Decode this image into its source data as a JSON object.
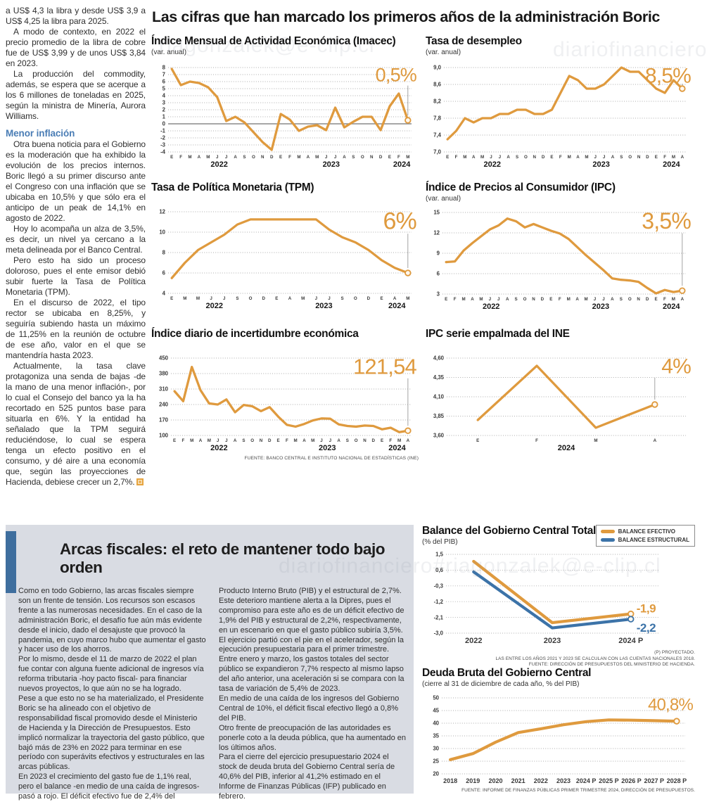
{
  "main_title": "Las cifras que han marcado los primeros años de la administración Boric",
  "watermarks": [
    {
      "text": "riagonzalek@e-clip.cl"
    },
    {
      "text": "diariofinanciero"
    },
    {
      "text": "diariofinanciero#riagonzalek@e-clip.cl"
    }
  ],
  "left_article": {
    "paragraphs": [
      "a US$ 4,3 la libra y desde US$ 3,9 a US$ 4,25 la libra para 2025.",
      "A modo de contexto, en 2022 el precio promedio de la libra de cobre fue de US$ 3,99 y de unos US$ 3,84 en 2023.",
      "La producción del commodity, además, se espera que se acerque a los 6 millones de toneladas en 2025, según la ministra de Minería, Aurora Williams."
    ],
    "subhead": "Menor inflación",
    "paragraphs2": [
      "Otra buena noticia para el Gobierno es la moderación que ha exhibido la evolución de los precios internos. Boric llegó a su primer discurso ante el Congreso con una inflación que se ubicaba en 10,5% y que sólo era el anticipo de un peak de 14,1% en agosto de 2022.",
      "Hoy lo acompaña un alza de 3,5%, es decir, un nivel ya cercano a la meta delineada por el Banco Central.",
      "Pero esto ha sido un proceso doloroso, pues el ente emisor debió subir fuerte la Tasa de Política Monetaria (TPM).",
      "En el discurso de 2022, el tipo rector se ubicaba en 8,25%, y seguiría subiendo hasta un máximo de 11,25% en la reunión de octubre de ese año, valor en el que se mantendría hasta 2023.",
      "Actualmente, la tasa clave protagoniza una senda de bajas -de la mano de una menor inflación-, por lo cual el Consejo del banco ya la ha recortado en 525 puntos base para situarla en 6%. Y la entidad ha señalado que la TPM seguirá reduciéndose, lo cual se espera tenga un efecto positivo en el consumo, y dé aire a una economía que, según las proyecciones de Hacienda, debiese crecer un 2,7%."
    ]
  },
  "fiscal_section": {
    "headline": "Arcas fiscales: el reto de mantener todo bajo orden",
    "col1": [
      "Como en todo Gobierno, las arcas fiscales siempre son un frente de tensión. Los recursos son escasos frente a las numerosas necesidades. En el caso de la administración Boric, el desafío fue aún más evidente desde el inicio, dado el desajuste que provocó la pandemia, en cuyo marco hubo que aumentar el gasto y hacer uso de los ahorros.",
      "Por lo mismo, desde el 11 de marzo de 2022 el plan fue contar con alguna fuente adicional de ingresos vía reforma tributaria -hoy pacto fiscal- para financiar nuevos proyectos, lo que aún no se ha logrado.",
      "Pese a que esto no se ha materializado, el Presidente Boric se ha alineado con el objetivo de responsabilidad fiscal promovido desde el Ministerio de Hacienda y la Dirección de Presupuestos. Esto implicó normalizar la trayectoria del gasto público, que bajó más de 23% en 2022 para terminar en ese período con superávits efectivos y estructurales en las arcas públicas.",
      "En 2023 el crecimiento del gasto fue de 1,1% real, pero el balance -en medio de una caída de ingresos- pasó a rojo. El déficit efectivo fue de 2,4% del"
    ],
    "col2": [
      "Producto Interno Bruto (PIB) y el estructural de 2,7%. Este deterioro mantiene alerta a la Dipres, pues el compromiso para este año es de un déficit efectivo de 1,9% del PIB y estructural de 2,2%, respectivamente, en un escenario en que el gasto público subiría 3,5%.",
      "El ejercicio partió con el pie en el acelerador, según la ejecución presupuestaria para el primer trimestre. Entre enero y marzo, los gastos totales del sector público se expandieron 7,7% respecto al mismo lapso del año anterior, una aceleración si se compara con la tasa de variación de 5,4% de 2023.",
      "En medio de una caída de los ingresos del Gobierno Central de 10%, el déficit fiscal efectivo llegó a 0,8% del PIB.",
      "Otro frente de preocupación de las autoridades es ponerle coto a la deuda pública, que ha aumentado en los últimos años.",
      "Para el cierre del ejercicio presupuestario 2024 el stock de deuda bruta del Gobierno Central sería de 40,6% del PIB, inferior al 41,2% estimado en el Informe de Finanzas Públicas (IFP) publicado en febrero."
    ]
  },
  "chart_data": [
    {
      "type": "line",
      "title": "Índice Mensual de Actividad Económica (Imacec)",
      "subtitle": "(var. anual)",
      "ymin": -4,
      "ymax": 8,
      "grid": true,
      "zero_line": true,
      "y_ticks": [
        [
          8,
          "8"
        ],
        [
          7,
          "7"
        ],
        [
          6,
          "6"
        ],
        [
          5,
          "5"
        ],
        [
          4,
          "4"
        ],
        [
          3,
          "3"
        ],
        [
          2,
          "2"
        ],
        [
          1,
          "1"
        ],
        [
          0,
          "0"
        ],
        [
          -1,
          "-1"
        ],
        [
          -2,
          "-2"
        ],
        [
          -3,
          "-3"
        ],
        [
          -4,
          "-4"
        ]
      ],
      "x_labels": [
        "E",
        "F",
        "M",
        "A",
        "M",
        "J",
        "J",
        "A",
        "S",
        "O",
        "N",
        "D",
        "E",
        "F",
        "M",
        "A",
        "M",
        "J",
        "J",
        "A",
        "S",
        "O",
        "N",
        "D",
        "E",
        "F",
        "M"
      ],
      "year_labels": [
        [
          "2022",
          0.21
        ],
        [
          "2023",
          0.67
        ],
        [
          "2024",
          0.96
        ]
      ],
      "m": {
        "l": 24,
        "r": 10,
        "t": 14,
        "b": 28
      },
      "series": [
        {
          "name": "Imacec",
          "color": "#DF9A3E",
          "values": [
            7.8,
            5.5,
            6.0,
            5.8,
            5.2,
            3.8,
            0.4,
            1.0,
            0.2,
            -1.2,
            -2.6,
            -3.7,
            1.4,
            0.6,
            -1.0,
            -0.4,
            -0.2,
            -0.9,
            2.3,
            -0.5,
            0.3,
            1.0,
            1.0,
            -0.9,
            2.5,
            4.3,
            0.5
          ]
        }
      ],
      "callout": {
        "text": "0,5%",
        "size": 27,
        "line": true
      }
    },
    {
      "type": "line",
      "title": "Tasa de desempleo",
      "subtitle": "(var. anual)",
      "ymin": 7.0,
      "ymax": 9.0,
      "grid": true,
      "y_ticks": [
        [
          9.0,
          "9,0"
        ],
        [
          8.6,
          "8,6"
        ],
        [
          8.2,
          "8,2"
        ],
        [
          7.8,
          "7,8"
        ],
        [
          7.4,
          "7,4"
        ],
        [
          7.0,
          "7,0"
        ]
      ],
      "x_labels": [
        "E",
        "F",
        "M",
        "A",
        "M",
        "J",
        "J",
        "A",
        "S",
        "O",
        "N",
        "D",
        "E",
        "F",
        "M",
        "A",
        "M",
        "J",
        "J",
        "A",
        "S",
        "O",
        "N",
        "D",
        "E",
        "F",
        "M",
        "A"
      ],
      "year_labels": [
        [
          "2022",
          0.2
        ],
        [
          "2023",
          0.65
        ],
        [
          "2024",
          0.94
        ]
      ],
      "m": {
        "l": 26,
        "r": 10,
        "t": 14,
        "b": 28
      },
      "series": [
        {
          "name": "Tasa de desempleo",
          "color": "#DF9A3E",
          "values": [
            7.3,
            7.5,
            7.8,
            7.7,
            7.8,
            7.8,
            7.9,
            7.9,
            8.0,
            8.0,
            7.9,
            7.9,
            8.0,
            8.4,
            8.8,
            8.7,
            8.5,
            8.5,
            8.6,
            8.8,
            9.0,
            8.9,
            8.9,
            8.7,
            8.5,
            8.4,
            8.7,
            8.5
          ]
        }
      ],
      "callout": {
        "text": "8,5%",
        "size": 30,
        "line": true
      }
    },
    {
      "type": "line",
      "title": "Tasa de Política Monetaria (TPM)",
      "subtitle": "",
      "ymin": 4,
      "ymax": 12,
      "grid": true,
      "y_ticks": [
        [
          12,
          "12"
        ],
        [
          10,
          "10"
        ],
        [
          8,
          "8"
        ],
        [
          6,
          "6"
        ],
        [
          4,
          "4"
        ]
      ],
      "x_labels": [
        "E",
        "M",
        "M",
        "J",
        "J",
        "S",
        "O",
        "D",
        "E",
        "A",
        "M",
        "J",
        "J",
        "S",
        "O",
        "D",
        "E",
        "A",
        "M"
      ],
      "year_labels": [
        [
          "2022",
          0.19
        ],
        [
          "2023",
          0.64
        ],
        [
          "2024",
          0.94
        ]
      ],
      "m": {
        "l": 24,
        "r": 10,
        "t": 24,
        "b": 30
      },
      "series": [
        {
          "name": "TPM",
          "color": "#DF9A3E",
          "values": [
            5.5,
            7.0,
            8.25,
            9.0,
            9.75,
            10.75,
            11.25,
            11.25,
            11.25,
            11.25,
            11.25,
            11.25,
            10.25,
            9.5,
            9.0,
            8.25,
            7.25,
            6.5,
            6.0
          ]
        }
      ],
      "callout": {
        "text": "6%",
        "size": 34,
        "line": true
      }
    },
    {
      "type": "line",
      "title": "Índice de Precios al Consumidor (IPC)",
      "subtitle": "(var. anual)",
      "ymin": 3,
      "ymax": 15,
      "grid": true,
      "y_ticks": [
        [
          15,
          "15"
        ],
        [
          12,
          "12"
        ],
        [
          9,
          "9"
        ],
        [
          6,
          "6"
        ],
        [
          3,
          "3"
        ]
      ],
      "x_labels": [
        "E",
        "F",
        "M",
        "A",
        "M",
        "J",
        "J",
        "A",
        "S",
        "O",
        "N",
        "D",
        "E",
        "F",
        "M",
        "A",
        "M",
        "J",
        "J",
        "A",
        "S",
        "O",
        "N",
        "D",
        "E",
        "F",
        "M",
        "A"
      ],
      "year_labels": [
        [
          "2022",
          0.2
        ],
        [
          "2023",
          0.65
        ],
        [
          "2024",
          0.94
        ]
      ],
      "m": {
        "l": 24,
        "r": 10,
        "t": 12,
        "b": 30
      },
      "series": [
        {
          "name": "IPC",
          "color": "#DF9A3E",
          "values": [
            7.7,
            7.8,
            9.4,
            10.5,
            11.5,
            12.5,
            13.1,
            14.1,
            13.7,
            12.8,
            13.3,
            12.8,
            12.3,
            11.9,
            11.1,
            9.9,
            8.7,
            7.6,
            6.5,
            5.3,
            5.1,
            5.0,
            4.8,
            3.9,
            3.1,
            3.6,
            3.3,
            3.5
          ]
        }
      ],
      "callout": {
        "text": "3,5%",
        "size": 32,
        "line": true
      }
    },
    {
      "type": "line",
      "title": "Índice diario de incertidumbre económica",
      "subtitle": "",
      "ymin": 100,
      "ymax": 450,
      "grid": true,
      "y_ticks": [
        [
          450,
          "450"
        ],
        [
          380,
          "380"
        ],
        [
          310,
          "310"
        ],
        [
          240,
          "240"
        ],
        [
          170,
          "170"
        ],
        [
          100,
          "100"
        ]
      ],
      "x_labels": [
        "E",
        "F",
        "M",
        "A",
        "M",
        "J",
        "J",
        "A",
        "S",
        "O",
        "N",
        "D",
        "E",
        "F",
        "M",
        "A",
        "M",
        "J",
        "J",
        "A",
        "S",
        "O",
        "N",
        "D",
        "E",
        "F",
        "M",
        "A"
      ],
      "year_labels": [
        [
          "2022",
          0.2
        ],
        [
          "2023",
          0.65
        ],
        [
          "2024",
          0.94
        ]
      ],
      "m": {
        "l": 28,
        "r": 10,
        "t": 24,
        "b": 30
      },
      "series": [
        {
          "name": "Incertidumbre económica",
          "color": "#DF9A3E",
          "values": [
            300,
            255,
            410,
            305,
            245,
            240,
            263,
            205,
            238,
            232,
            210,
            228,
            185,
            148,
            140,
            152,
            168,
            177,
            176,
            150,
            143,
            140,
            145,
            143,
            128,
            135,
            115,
            121.54
          ]
        }
      ],
      "callout": {
        "text": "121,54",
        "size": 31,
        "line": true
      },
      "source": "FUENTE: BANCO CENTRAL E INSTITUTO NACIONAL DE ESTADÍSTICAS (INE)"
    },
    {
      "type": "line",
      "title": "IPC serie empalmada del INE",
      "subtitle": "",
      "ymin": 3.6,
      "ymax": 4.6,
      "grid": true,
      "x_inset": 0.13,
      "y_ticks": [
        [
          4.6,
          "4,60"
        ],
        [
          4.35,
          "4,35"
        ],
        [
          4.1,
          "4,10"
        ],
        [
          3.85,
          "3,85"
        ],
        [
          3.6,
          "3,60"
        ]
      ],
      "x_labels": [
        "E",
        "F",
        "M",
        "A"
      ],
      "year_labels": [
        [
          "2024",
          0.5
        ]
      ],
      "m": {
        "l": 30,
        "r": 10,
        "t": 24,
        "b": 30
      },
      "series": [
        {
          "name": "IPC empalmado",
          "color": "#DF9A3E",
          "values": [
            3.8,
            4.5,
            3.7,
            4.0
          ]
        }
      ],
      "callout": {
        "text": "4%",
        "size": 30,
        "line": true
      }
    },
    {
      "type": "line",
      "title": "Balance del Gobierno Central Total",
      "subtitle": "(% del PIB)",
      "ymin": -3.0,
      "ymax": 1.5,
      "grid": true,
      "x_inset": 0.13,
      "y_ticks": [
        [
          1.5,
          "1,5"
        ],
        [
          0.6,
          "0,6"
        ],
        [
          -0.3,
          "-0,3"
        ],
        [
          -1.2,
          "-1,2"
        ],
        [
          -2.1,
          "-2,1"
        ],
        [
          -3.0,
          "-3,0"
        ]
      ],
      "x_labels": [
        "2022",
        "2023",
        "2024 P"
      ],
      "x_label_size": 11,
      "x_label_dy": 14,
      "stroke": 4.2,
      "m": {
        "l": 34,
        "r": 52,
        "t": 10,
        "b": 24
      },
      "legend_position": "top-right",
      "series": [
        {
          "name": "BALANCE EFECTIVO",
          "color": "#DF9A3E",
          "values": [
            1.1,
            -2.4,
            -1.9
          ],
          "end_label": "-1,9",
          "end_label_dy": -2
        },
        {
          "name": "BALANCE ESTRUCTURAL",
          "color": "#3C73A8",
          "values": [
            0.5,
            -2.7,
            -2.2
          ],
          "end_label": "-2,2",
          "end_label_dy": 18
        }
      ],
      "footnotes": [
        "(P) PROYECTADO.",
        "LAS ENTRE LOS AÑOS 2021 Y 2023 SE CALCULAN  CON LAS CUENTAS NACIONALES 2018.",
        "FUENTE: DIRECCIÓN DE PRESUPUESTOS DEL MINISTERIO DE HACIENDA."
      ]
    },
    {
      "type": "line",
      "title": "Deuda Bruta del Gobierno Central",
      "subtitle": "(cierre al 31 de diciembre de cada año, % del PIB)",
      "ymin": 20,
      "ymax": 50,
      "grid": true,
      "x_inset": 0.035,
      "y_ticks": [
        [
          50,
          "50"
        ],
        [
          45,
          "45"
        ],
        [
          40,
          "40"
        ],
        [
          35,
          "35"
        ],
        [
          30,
          "30"
        ],
        [
          25,
          "25"
        ],
        [
          20,
          "20"
        ]
      ],
      "x_labels": [
        "2018",
        "2019",
        "2020",
        "2021",
        "2022",
        "2023",
        "2024 P",
        "2025 P",
        "2026 P",
        "2027 P",
        "2028 P"
      ],
      "x_label_size": 9,
      "x_label_dy": 13,
      "stroke": 4.2,
      "m": {
        "l": 28,
        "r": 14,
        "t": 12,
        "b": 20
      },
      "series": [
        {
          "name": "Deuda bruta",
          "color": "#DF9A3E",
          "values": [
            25.6,
            28.0,
            32.5,
            36.3,
            37.8,
            39.4,
            40.6,
            41.3,
            41.2,
            41.0,
            40.8
          ]
        }
      ],
      "callout": {
        "text": "40,8%",
        "size": 24,
        "line": false
      },
      "source": "FUENTE: INFORME DE FINANZAS PÚBLICAS PRIMER TRIMESTRE 2024, DIRECCIÓN DE PRESUPUESTOS."
    }
  ]
}
